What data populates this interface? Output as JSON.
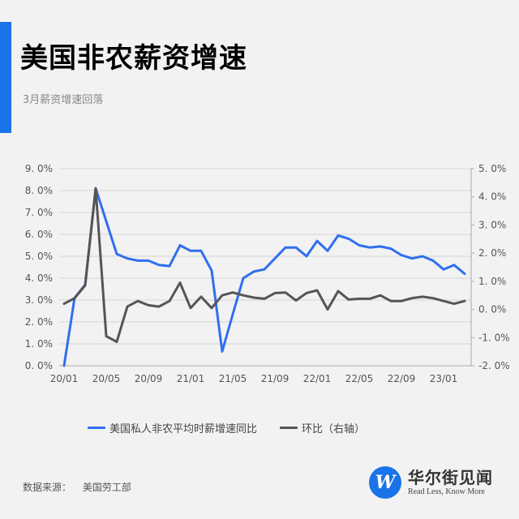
{
  "header": {
    "title": "美国非农薪资增速",
    "subtitle": "3月薪资增速回落",
    "accent_color": "#1a73e8"
  },
  "chart_data": {
    "type": "line",
    "title": "美国非农薪资增速",
    "subtitle": "3月薪资增速回落",
    "x": [
      "20/01",
      "20/02",
      "20/03",
      "20/04",
      "20/05",
      "20/06",
      "20/07",
      "20/08",
      "20/09",
      "20/10",
      "20/11",
      "20/12",
      "21/01",
      "21/02",
      "21/03",
      "21/04",
      "21/05",
      "21/06",
      "21/07",
      "21/08",
      "21/09",
      "21/10",
      "21/11",
      "21/12",
      "22/01",
      "22/02",
      "22/03",
      "22/04",
      "22/05",
      "22/06",
      "22/07",
      "22/08",
      "22/09",
      "22/10",
      "22/11",
      "22/12",
      "23/01",
      "23/02",
      "23/03"
    ],
    "x_tick_labels": [
      "20/01",
      "20/05",
      "20/09",
      "21/01",
      "21/05",
      "21/09",
      "22/01",
      "22/05",
      "22/09",
      "23/01"
    ],
    "series": [
      {
        "name": "美国私人非农平均时薪增速同比",
        "axis": "left",
        "color": "#2f6ff0",
        "values": [
          0.0,
          3.1,
          3.7,
          8.1,
          6.6,
          5.1,
          4.9,
          4.8,
          4.8,
          4.6,
          4.55,
          5.5,
          5.25,
          5.25,
          4.35,
          0.65,
          2.35,
          4.0,
          4.3,
          4.4,
          4.9,
          5.4,
          5.4,
          5.0,
          5.7,
          5.25,
          5.95,
          5.8,
          5.5,
          5.4,
          5.45,
          5.35,
          5.05,
          4.9,
          5.0,
          4.8,
          4.4,
          4.6,
          4.2
        ]
      },
      {
        "name": "环比（右轴）",
        "axis": "right",
        "color": "#555555",
        "values": [
          0.2,
          0.4,
          0.85,
          4.3,
          -0.95,
          -1.15,
          0.1,
          0.3,
          0.15,
          0.1,
          0.3,
          0.95,
          0.05,
          0.45,
          0.05,
          0.5,
          0.6,
          0.5,
          0.42,
          0.38,
          0.58,
          0.6,
          0.32,
          0.58,
          0.68,
          0.0,
          0.65,
          0.35,
          0.38,
          0.38,
          0.5,
          0.3,
          0.3,
          0.4,
          0.45,
          0.4,
          0.3,
          0.2,
          0.3
        ]
      }
    ],
    "left_axis": {
      "ylim": [
        0,
        9
      ],
      "ticks": [
        "0. 0%",
        "1. 0%",
        "2. 0%",
        "3. 0%",
        "4. 0%",
        "5. 0%",
        "6. 0%",
        "7. 0%",
        "8. 0%",
        "9. 0%"
      ]
    },
    "right_axis": {
      "ylim": [
        -2,
        5
      ],
      "ticks": [
        "-2. 0%",
        "-1. 0%",
        "0. 0%",
        "1. 0%",
        "2. 0%",
        "3. 0%",
        "4. 0%",
        "5. 0%"
      ]
    },
    "grid": true,
    "legend_position": "bottom",
    "xlabel": "",
    "ylabel": ""
  },
  "legend": [
    {
      "label": "美国私人非农平均时薪增速同比",
      "color": "#2f6ff0"
    },
    {
      "label": "环比（右轴）",
      "color": "#555555"
    }
  ],
  "footer": {
    "source_label": "数据来源：",
    "source_value": "美国劳工部",
    "brand_name": "华尔街见闻",
    "brand_slogan": "Read Less, Know More",
    "logo_letter": "W"
  }
}
